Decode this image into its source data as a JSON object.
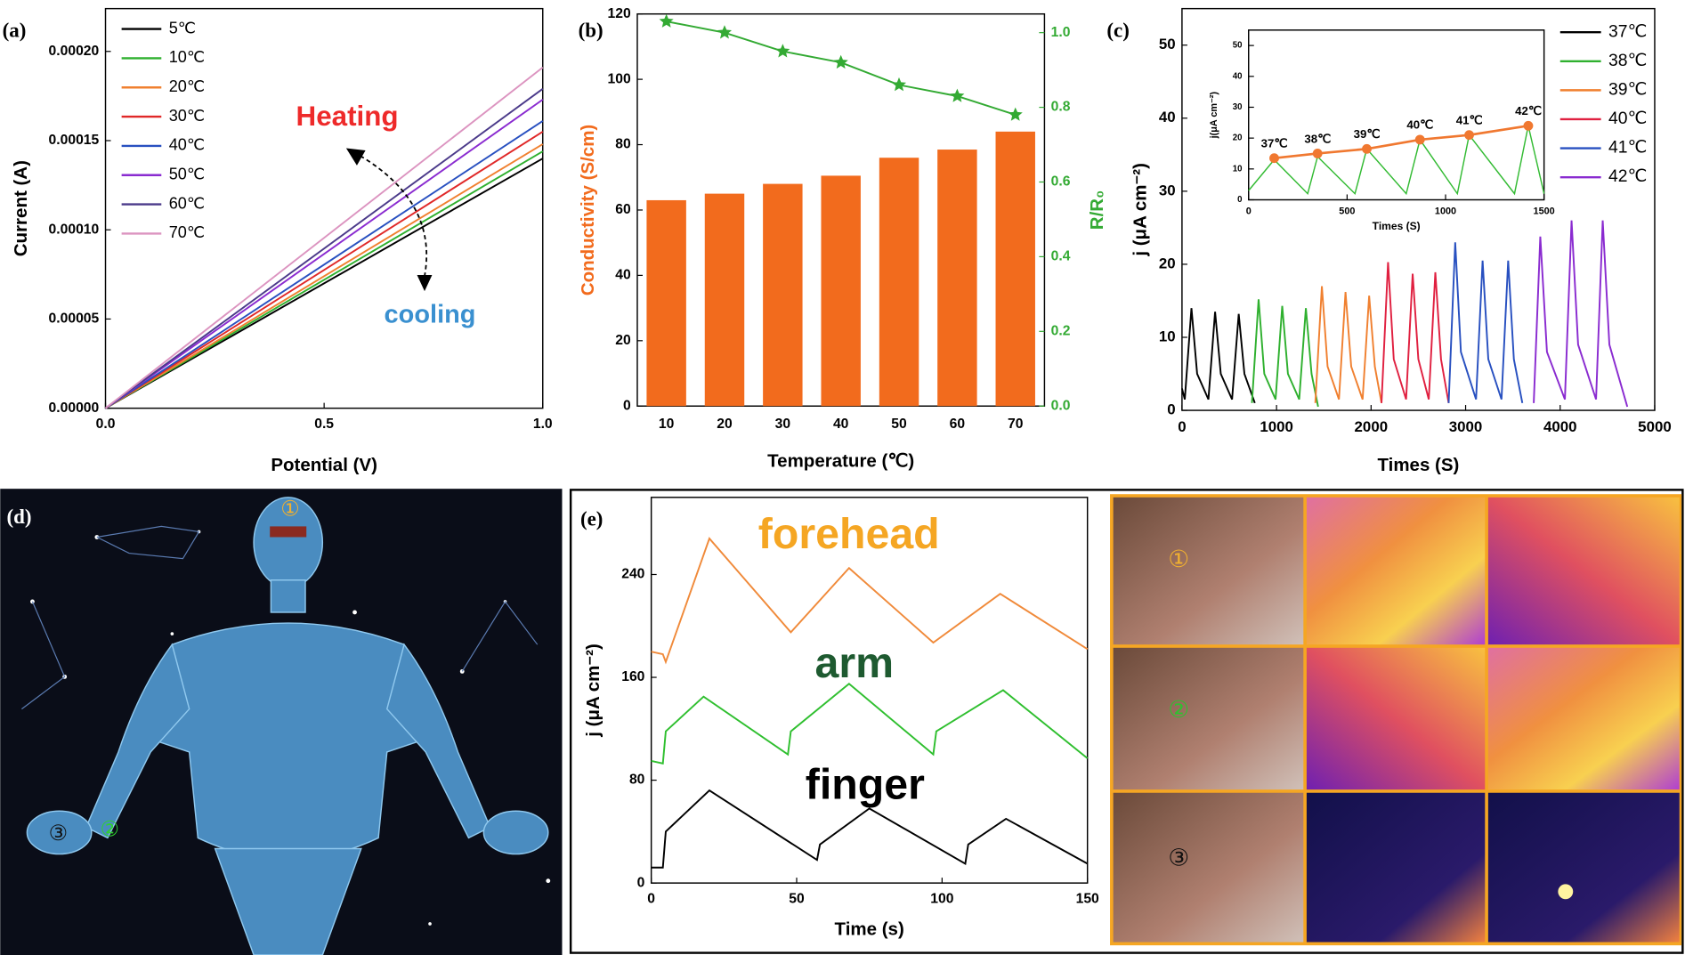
{
  "chart_data": [
    {
      "type": "line",
      "panel": "(a)",
      "xlabel": "Potential (V)",
      "ylabel": "Current (A)",
      "x": [
        0,
        1
      ],
      "series": [
        {
          "name": "5℃",
          "color": "#000000",
          "values": [
            0,
            0.00014
          ]
        },
        {
          "name": "10℃",
          "color": "#2fb02f",
          "values": [
            0,
            0.000144
          ]
        },
        {
          "name": "20℃",
          "color": "#f08030",
          "values": [
            0,
            0.000148
          ]
        },
        {
          "name": "30℃",
          "color": "#e02828",
          "values": [
            0,
            0.000155
          ]
        },
        {
          "name": "40℃",
          "color": "#2850c0",
          "values": [
            0,
            0.000161
          ]
        },
        {
          "name": "50℃",
          "color": "#8a2bd0",
          "values": [
            0,
            0.000173
          ]
        },
        {
          "name": "60℃",
          "color": "#4b3a8a",
          "values": [
            0,
            0.000179
          ]
        },
        {
          "name": "70℃",
          "color": "#dc94c0",
          "values": [
            0,
            0.000191
          ]
        }
      ],
      "xlim": [
        0,
        1
      ],
      "ylim": [
        0,
        0.000224
      ],
      "xticks": [
        {
          "value": 0,
          "label": "0.0"
        },
        0.5,
        {
          "value": 1,
          "label": "1.0"
        }
      ],
      "yticks": [
        {
          "value": 0,
          "label": "0.00000"
        },
        {
          "value": 5e-05,
          "label": "0.00005"
        },
        {
          "value": 0.0001,
          "label": "0.00010"
        },
        {
          "value": 0.00015,
          "label": "0.00015"
        },
        {
          "value": 0.0002,
          "label": "0.00020"
        }
      ],
      "annotations": [
        {
          "text": "Heating",
          "color": "#ee2a2a"
        },
        {
          "text": "cooling",
          "color": "#3a90d0"
        }
      ]
    },
    {
      "type": "bar",
      "panel": "(b)",
      "xlabel": "Temperature (℃)",
      "ylabel": "Conductivity (S/cm)",
      "y2label": "R/R₀",
      "categories": [
        "10",
        "20",
        "30",
        "40",
        "50",
        "60",
        "70"
      ],
      "series": [
        {
          "color": "#f26b1d",
          "values": [
            63,
            65,
            68,
            70.5,
            76,
            78.5,
            84
          ]
        },
        {
          "color": "#33aa33",
          "axis": "y2",
          "marker": "star",
          "values": [
            1.03,
            1.0,
            0.95,
            0.92,
            0.86,
            0.83,
            0.78
          ]
        }
      ],
      "ylim": [
        0,
        120
      ],
      "yticks": [
        0,
        20,
        40,
        60,
        80,
        100,
        120
      ],
      "y2lim": [
        0,
        1.05
      ],
      "y2ticks": [
        {
          "value": 0,
          "label": "0.0"
        },
        0.2,
        0.4,
        0.6,
        0.8,
        {
          "value": 1,
          "label": "1.0"
        }
      ]
    },
    {
      "type": "line",
      "panel": "(c)",
      "xlabel": "Times (S)",
      "ylabel": "j (μA cm⁻²)",
      "series": [
        {
          "name": "37℃",
          "color": "#000000",
          "x": [
            0,
            30,
            100,
            160,
            280,
            350,
            410,
            530,
            600,
            660,
            770
          ],
          "values": [
            3,
            1.5,
            14,
            5,
            1.5,
            13.5,
            5,
            1.5,
            13.2,
            5,
            1
          ]
        },
        {
          "name": "38℃",
          "color": "#2fb02f",
          "x": [
            740,
            810,
            870,
            990,
            1060,
            1120,
            1240,
            1310,
            1370,
            1440
          ],
          "values": [
            1,
            15.2,
            5,
            1.5,
            14.3,
            5,
            1.5,
            14,
            5,
            0.5
          ]
        },
        {
          "name": "39℃",
          "color": "#f08030",
          "x": [
            1410,
            1480,
            1540,
            1660,
            1730,
            1790,
            1910,
            1980,
            2040,
            2110
          ],
          "values": [
            1,
            17,
            6,
            1.5,
            16.2,
            6,
            1.5,
            15.7,
            6,
            1
          ]
        },
        {
          "name": "40℃",
          "color": "#e02040",
          "x": [
            2110,
            2180,
            2240,
            2370,
            2440,
            2500,
            2610,
            2680,
            2740,
            2820
          ],
          "values": [
            1,
            20.3,
            7,
            1.5,
            18.7,
            7,
            1.5,
            18.9,
            7,
            1
          ]
        },
        {
          "name": "41℃",
          "color": "#2850c0",
          "x": [
            2820,
            2890,
            2950,
            3110,
            3180,
            3240,
            3380,
            3450,
            3510,
            3600
          ],
          "values": [
            1,
            23,
            8,
            1.5,
            20.5,
            7,
            1.5,
            20.5,
            7,
            1
          ]
        },
        {
          "name": "42℃",
          "color": "#8a2bd0",
          "x": [
            3720,
            3790,
            3860,
            4050,
            4120,
            4190,
            4380,
            4450,
            4520,
            4710
          ],
          "values": [
            1,
            23.8,
            8,
            1.5,
            26,
            9,
            1.5,
            26,
            9,
            0.5
          ]
        }
      ],
      "xlim": [
        0,
        5000
      ],
      "ylim": [
        0,
        55
      ],
      "xticks": [
        0,
        1000,
        2000,
        3000,
        4000,
        5000
      ],
      "yticks": [
        0,
        10,
        20,
        30,
        40,
        50
      ],
      "inset": {
        "type": "line",
        "xlabel": "Times (S)",
        "ylabel": "j(μA cm⁻²)",
        "series": [
          {
            "color": "#33bb33",
            "x": [
              0,
              130,
              300,
              350,
              540,
              600,
              800,
              870,
              1060,
              1120,
              1350,
              1420,
              1500
            ],
            "values": [
              3,
              13,
              2,
              14,
              2,
              16.5,
              2,
              19.5,
              2,
              21,
              2,
              24,
              2
            ]
          },
          {
            "color": "#f07830",
            "marker": "circle",
            "x": [
              130,
              350,
              600,
              870,
              1120,
              1420
            ],
            "values": [
              13.5,
              15,
              16.5,
              19.5,
              21,
              24
            ],
            "point_labels": [
              "37℃",
              "38℃",
              "39℃",
              "40℃",
              "41℃",
              "42℃"
            ]
          }
        ],
        "xlim": [
          0,
          1500
        ],
        "ylim": [
          0,
          55
        ],
        "xticks": [
          0,
          500,
          1000,
          1500
        ],
        "yticks": [
          0,
          10,
          20,
          30,
          40,
          50
        ]
      }
    },
    {
      "type": "line",
      "panel": "(e)",
      "xlabel": "Time (s)",
      "ylabel": "j (μA cm⁻²)",
      "series": [
        {
          "name": "forehead",
          "color": "#f08a3a",
          "label_color": "#f5a623",
          "x": [
            0,
            4,
            5,
            20,
            48,
            68,
            97,
            120,
            150
          ],
          "values": [
            180,
            178,
            172,
            268,
            195,
            245,
            187,
            225,
            182
          ]
        },
        {
          "name": "arm",
          "color": "#2fbf2f",
          "label_color": "#1e5a30",
          "x": [
            0,
            4,
            5,
            18,
            47,
            48,
            68,
            97,
            98,
            121,
            150
          ],
          "values": [
            95,
            93,
            118,
            145,
            100,
            118,
            155,
            100,
            118,
            150,
            97
          ]
        },
        {
          "name": "finger",
          "color": "#000000",
          "label_color": "#000000",
          "x": [
            0,
            4,
            5,
            20,
            57,
            58,
            75,
            108,
            109,
            122,
            150
          ],
          "values": [
            12,
            12,
            40,
            72,
            18,
            30,
            58,
            15,
            30,
            50,
            15
          ]
        }
      ],
      "xlim": [
        0,
        150
      ],
      "ylim": [
        0,
        300
      ],
      "xticks": [
        0,
        50,
        100,
        150
      ],
      "yticks": [
        0,
        80,
        160,
        240
      ]
    }
  ],
  "panel_d": {
    "panel": "(d)",
    "markers": [
      "①",
      "②",
      "③"
    ]
  },
  "photos": {
    "markers": [
      "①",
      "②",
      "③"
    ]
  }
}
